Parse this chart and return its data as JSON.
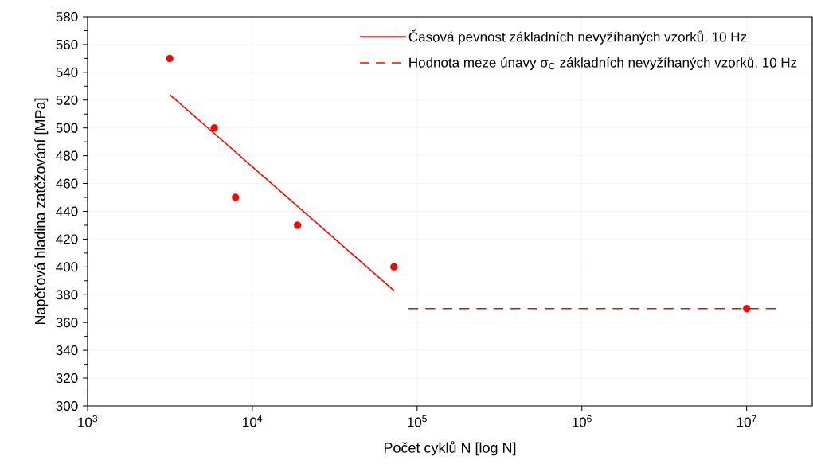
{
  "chart_data": {
    "type": "scatter",
    "xlabel": "Počet cyklů N [log N]",
    "ylabel": "Napěťová hladina zatěžování [MPa]",
    "log": "x",
    "grid": true,
    "legend": "top right",
    "xlim": [
      1000,
      25000000
    ],
    "xticks": [
      {
        "value": 1000,
        "label": "10$^{3}$"
      },
      {
        "value": 10000,
        "label": "10$^{4}$"
      },
      {
        "value": 100000,
        "label": "10$^{5}$"
      },
      {
        "value": 1000000,
        "label": "10$^{6}$"
      },
      {
        "value": 10000000,
        "label": "10$^{7}$"
      }
    ],
    "ylim": [
      300,
      580
    ],
    "yticks": [
      300,
      320,
      340,
      360,
      380,
      400,
      420,
      440,
      460,
      480,
      500,
      520,
      540,
      560,
      580
    ],
    "series": [
      {
        "marker": "circle",
        "color": "#ff0000",
        "x": [
          3150,
          5870,
          7900,
          18800,
          72400,
          10000000
        ],
        "values": [
          550,
          500,
          450,
          430,
          400,
          370
        ]
      },
      {
        "type": "line",
        "name": "Časová pevnost základních nevyžíhaných vzorků, 10 Hz",
        "color": "#ff0000",
        "marker": "none",
        "line_style": "solid",
        "x": [
          3150,
          72400
        ],
        "values": [
          524,
          383
        ]
      },
      {
        "type": "line",
        "name": "Hodnota meze únavy σ$_{C}$ základních nevyžíhaných vzorků, 10 Hz",
        "color": "#ff0000",
        "marker": "none",
        "line_style": "dashed",
        "x": [
          88500,
          15000000
        ],
        "values": [
          370,
          370
        ]
      }
    ]
  }
}
